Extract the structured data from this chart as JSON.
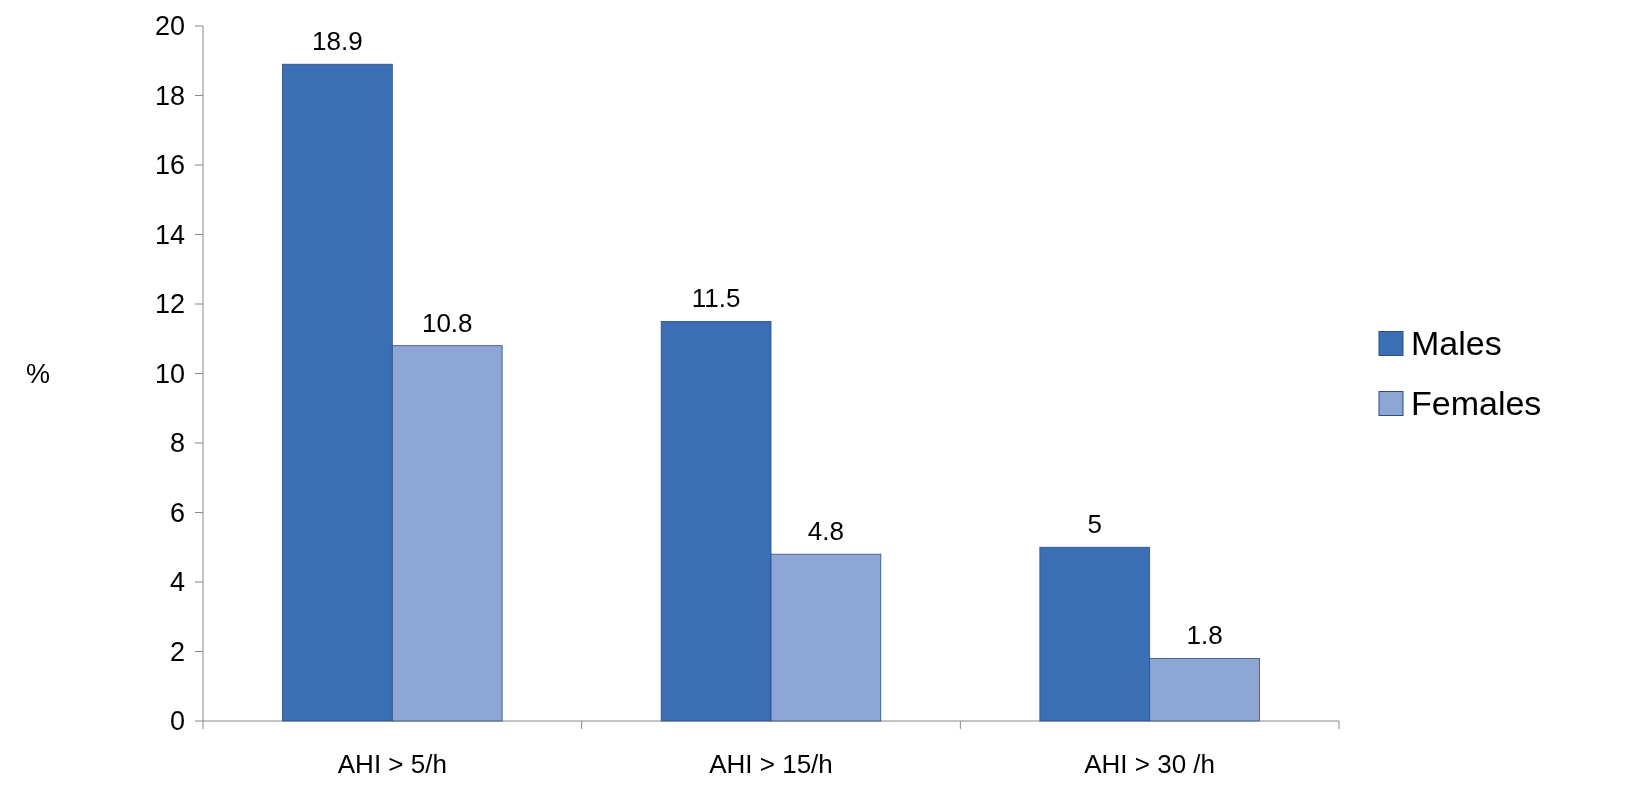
{
  "chart_data": {
    "type": "bar",
    "ylabel": "%",
    "categories": [
      "AHI > 5/h",
      "AHI > 15/h",
      "AHI > 30 /h"
    ],
    "series": [
      {
        "name": "Males",
        "color": "#3a6fb5",
        "values": [
          18.9,
          11.5,
          5
        ]
      },
      {
        "name": "Females",
        "color": "#8ea6d6",
        "values": [
          10.8,
          4.8,
          1.8
        ]
      }
    ],
    "ylim": [
      0,
      20
    ],
    "yticks": [
      0,
      2,
      4,
      6,
      8,
      10,
      12,
      14,
      16,
      18,
      20
    ],
    "data_labels": true,
    "grid": false,
    "legend": "right"
  }
}
